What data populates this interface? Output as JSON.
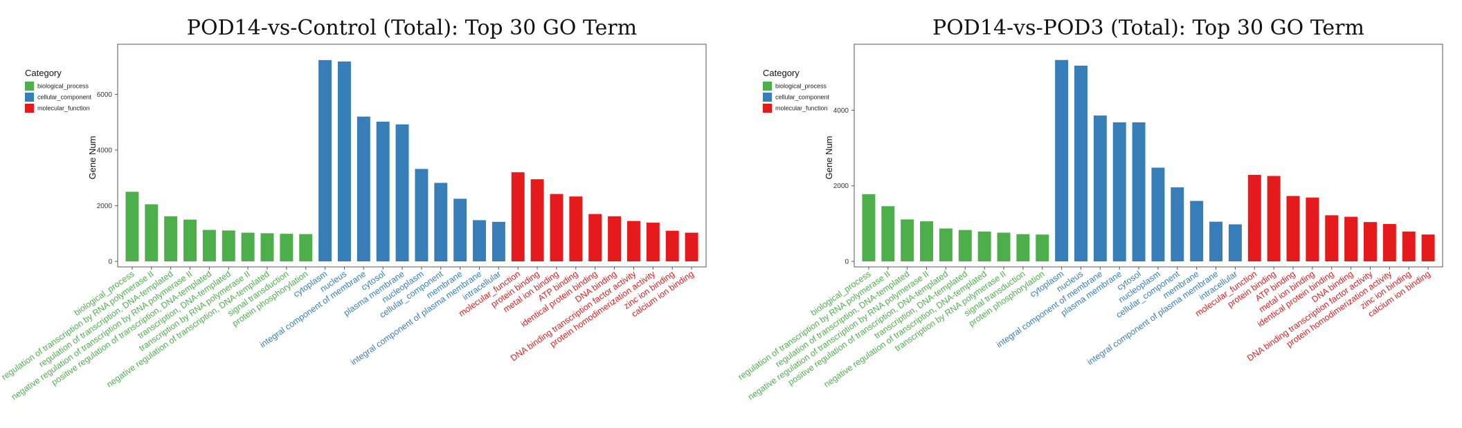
{
  "chart_data": [
    {
      "type": "bar",
      "title": "POD14-vs-Control (Total): Top 30 GO Term",
      "xlabel": "",
      "ylabel": "Gene Num",
      "ylim": [
        0,
        7600
      ],
      "yticks": [
        0,
        2000,
        4000,
        6000
      ],
      "grid": false,
      "legend": {
        "title": "Category",
        "position": "left",
        "entries": [
          {
            "label": "biological_process",
            "color": "#4daf4a"
          },
          {
            "label": "cellular_component",
            "color": "#377eb8"
          },
          {
            "label": "molecular_function",
            "color": "#e41a1c"
          }
        ]
      },
      "categories": [
        "biological_process",
        "regulation of transcription by RNA polymerase II",
        "regulation of transcription, DNA-templated",
        "negative regulation of transcription by RNA polymerase II",
        "positive regulation of transcription, DNA-templated",
        "transcription, DNA-templated",
        "transcription by RNA polymerase II",
        "negative regulation of transcription, DNA-templated",
        "signal transduction",
        "protein phosphorylation",
        "cytoplasm",
        "nucleus",
        "integral component of membrane",
        "cytosol",
        "plasma membrane",
        "nucleoplasm",
        "cellular_component",
        "membrane",
        "integral component of plasma membrane",
        "intracellular",
        "molecular_function",
        "protein binding",
        "metal ion binding",
        "ATP binding",
        "identical protein binding",
        "DNA binding",
        "DNA binding transcription factor activity",
        "protein homodimerization activity",
        "zinc ion binding",
        "calcium ion binding"
      ],
      "category_groups": [
        "biological_process",
        "biological_process",
        "biological_process",
        "biological_process",
        "biological_process",
        "biological_process",
        "biological_process",
        "biological_process",
        "biological_process",
        "biological_process",
        "cellular_component",
        "cellular_component",
        "cellular_component",
        "cellular_component",
        "cellular_component",
        "cellular_component",
        "cellular_component",
        "cellular_component",
        "cellular_component",
        "cellular_component",
        "molecular_function",
        "molecular_function",
        "molecular_function",
        "molecular_function",
        "molecular_function",
        "molecular_function",
        "molecular_function",
        "molecular_function",
        "molecular_function",
        "molecular_function"
      ],
      "values": [
        2500,
        2050,
        1620,
        1500,
        1130,
        1110,
        1030,
        1010,
        990,
        980,
        7230,
        7180,
        5200,
        5020,
        4920,
        3320,
        2820,
        2250,
        1480,
        1420,
        3200,
        2950,
        2420,
        2330,
        1700,
        1620,
        1450,
        1390,
        1100,
        1030
      ]
    },
    {
      "type": "bar",
      "title": "POD14-vs-POD3 (Total): Top 30 GO Term",
      "xlabel": "",
      "ylabel": "Gene Num",
      "ylim": [
        0,
        5600
      ],
      "yticks": [
        0,
        2000,
        4000
      ],
      "grid": false,
      "legend": {
        "title": "Category",
        "position": "left",
        "entries": [
          {
            "label": "biological_process",
            "color": "#4daf4a"
          },
          {
            "label": "cellular_component",
            "color": "#377eb8"
          },
          {
            "label": "molecular_function",
            "color": "#e41a1c"
          }
        ]
      },
      "categories": [
        "biological_process",
        "regulation of transcription by RNA polymerase II",
        "regulation of transcription, DNA-templated",
        "negative regulation of transcription by RNA polymerase II",
        "positive regulation of transcription, DNA-templated",
        "transcription, DNA-templated",
        "negative regulation of transcription, DNA-templated",
        "transcription by RNA polymerase II",
        "signal transduction",
        "protein phosphorylation",
        "cytoplasm",
        "nucleus",
        "integral component of membrane",
        "plasma membrane",
        "cytosol",
        "nucleoplasm",
        "cellular_component",
        "membrane",
        "integral component of plasma membrane",
        "intracellular",
        "molecular_function",
        "protein binding",
        "ATP binding",
        "metal ion binding",
        "identical protein binding",
        "DNA binding",
        "DNA binding transcription factor activity",
        "protein homodimerization activity",
        "zinc ion binding",
        "calcium ion binding"
      ],
      "category_groups": [
        "biological_process",
        "biological_process",
        "biological_process",
        "biological_process",
        "biological_process",
        "biological_process",
        "biological_process",
        "biological_process",
        "biological_process",
        "biological_process",
        "cellular_component",
        "cellular_component",
        "cellular_component",
        "cellular_component",
        "cellular_component",
        "cellular_component",
        "cellular_component",
        "cellular_component",
        "cellular_component",
        "cellular_component",
        "molecular_function",
        "molecular_function",
        "molecular_function",
        "molecular_function",
        "molecular_function",
        "molecular_function",
        "molecular_function",
        "molecular_function",
        "molecular_function",
        "molecular_function"
      ],
      "values": [
        1780,
        1460,
        1110,
        1060,
        870,
        830,
        790,
        760,
        720,
        710,
        5330,
        5180,
        3860,
        3680,
        3680,
        2480,
        1960,
        1600,
        1050,
        980,
        2290,
        2260,
        1730,
        1690,
        1220,
        1180,
        1040,
        990,
        790,
        710
      ]
    }
  ]
}
